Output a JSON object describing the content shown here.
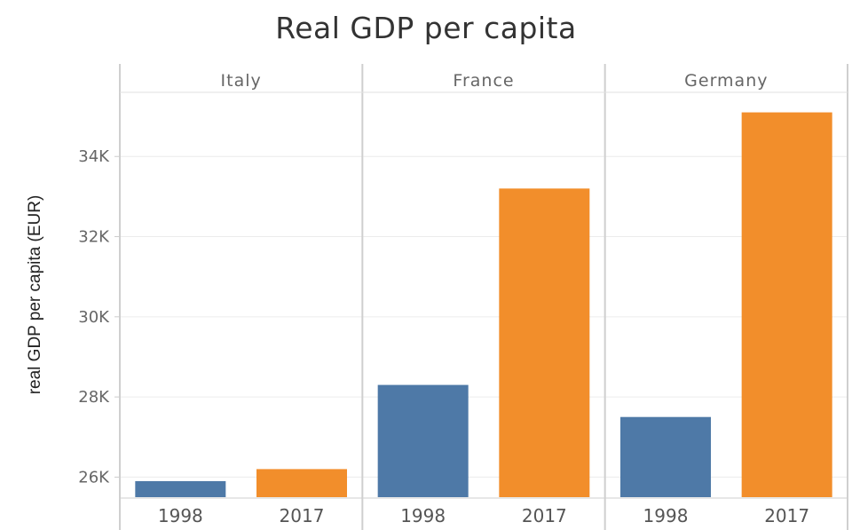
{
  "chart_data": {
    "type": "bar",
    "title": "Real GDP per capita",
    "ylabel": "real GDP per capita (EUR)",
    "xlabel": "",
    "ylim": [
      25500,
      35600
    ],
    "yticks": [
      {
        "value": 26000,
        "label": "26K"
      },
      {
        "value": 28000,
        "label": "28K"
      },
      {
        "value": 30000,
        "label": "30K"
      },
      {
        "value": 32000,
        "label": "32K"
      },
      {
        "value": 34000,
        "label": "34K"
      }
    ],
    "facets": [
      "Italy",
      "France",
      "Germany"
    ],
    "categories": [
      "1998",
      "2017"
    ],
    "colors": {
      "1998": "#4e79a7",
      "2017": "#f28e2b"
    },
    "grid": true,
    "values": {
      "Italy": {
        "1998": 25900,
        "2017": 26200
      },
      "France": {
        "1998": 28300,
        "2017": 33200
      },
      "Germany": {
        "1998": 27500,
        "2017": 35100
      }
    }
  }
}
